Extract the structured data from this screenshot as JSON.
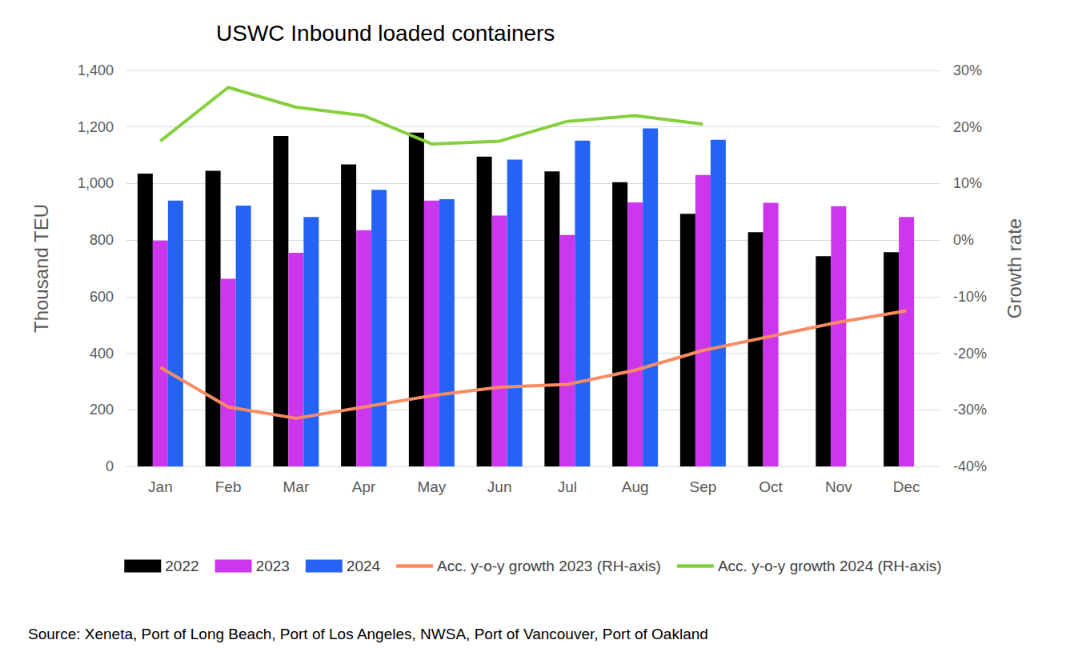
{
  "chart_data": {
    "type": "bar",
    "title": "USWC Inbound loaded containers",
    "source": "Source: Xeneta, Port of Long Beach, Port of Los Angeles, NWSA, Port of Vancouver, Port of Oakland",
    "y_label": "Thousand TEU",
    "y2_label": "Growth rate",
    "categories": [
      "Jan",
      "Feb",
      "Mar",
      "Apr",
      "May",
      "Jun",
      "Jul",
      "Aug",
      "Sep",
      "Oct",
      "Nov",
      "Dec"
    ],
    "series": [
      {
        "name": "2022",
        "type": "bar",
        "color": "#000000",
        "values": [
          1035,
          1045,
          1168,
          1068,
          1180,
          1095,
          1043,
          1005,
          893,
          828,
          743,
          757
        ]
      },
      {
        "name": "2023",
        "type": "bar",
        "color": "#cc36ec",
        "values": [
          798,
          663,
          755,
          835,
          940,
          887,
          818,
          933,
          1030,
          932,
          920,
          882
        ]
      },
      {
        "name": "2024",
        "type": "bar",
        "color": "#2563f5",
        "values": [
          940,
          922,
          882,
          978,
          945,
          1085,
          1152,
          1195,
          1155,
          null,
          null,
          null
        ]
      },
      {
        "name": "Acc. y-o-y growth 2023 (RH-axis)",
        "type": "line",
        "axis": "y2",
        "color": "#f98b62",
        "marker": "none",
        "values": [
          -22.5,
          -29.5,
          -31.5,
          -29.5,
          -27.5,
          -26,
          -25.5,
          -23,
          -19.5,
          -17,
          -14.5,
          -12.5
        ]
      },
      {
        "name": "Acc. y-o-y growth 2024 (RH-axis)",
        "type": "line",
        "axis": "y2",
        "color": "#86cf3c",
        "marker": "none",
        "values": [
          17.5,
          27,
          23.5,
          22,
          17,
          17.5,
          21,
          22,
          20.5,
          null,
          null,
          null
        ]
      }
    ],
    "ylim": [
      0,
      1400
    ],
    "yticks": [
      0,
      200,
      400,
      600,
      800,
      {
        "value": 1000,
        "label": "1,000"
      },
      {
        "value": 1200,
        "label": "1,200"
      },
      {
        "value": 1400,
        "label": "1,400"
      }
    ],
    "y2lim": [
      -40,
      30
    ],
    "y2ticks": [
      {
        "value": -40,
        "label": "-40%"
      },
      {
        "value": -30,
        "label": "-30%"
      },
      {
        "value": -20,
        "label": "-20%"
      },
      {
        "value": -10,
        "label": "-10%"
      },
      {
        "value": 0,
        "label": "0%"
      },
      {
        "value": 10,
        "label": "10%"
      },
      {
        "value": 20,
        "label": "20%"
      },
      {
        "value": 30,
        "label": "30%"
      }
    ],
    "grid": true,
    "legend": "bottom"
  }
}
